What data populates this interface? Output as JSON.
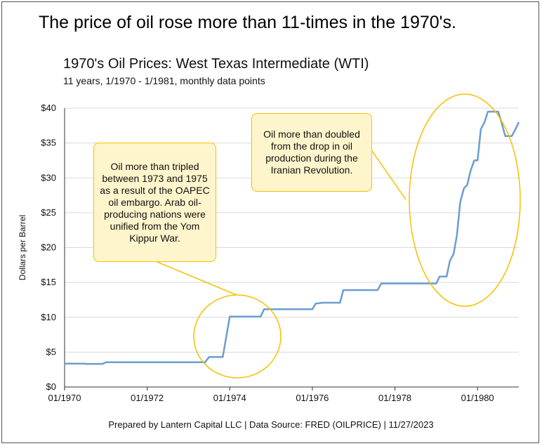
{
  "headline": "The price of oil rose more than 11-times in the 1970's.",
  "footer": "Prepared by Lantern Capital LLC | Data Source: FRED (OILPRICE) | 11/27/2023",
  "colors": {
    "line": "#6a9ecf",
    "annotation": "#f2c200",
    "callout_fill": "#fff5cc",
    "grid": "#d9d9d9"
  },
  "annotations": [
    {
      "text": "Oil more than tripled between 1973 and 1975 as a result of the OAPEC oil embargo. Arab oil-producing nations were unified from the Yom Kippur War."
    },
    {
      "text": "Oil more than doubled from the drop in oil production during the Iranian Revolution."
    }
  ],
  "chart_data": {
    "type": "line",
    "title": "1970's Oil Prices: West Texas Intermediate (WTI)",
    "subtitle": "11 years, 1/1970 - 1/1981, monthly data points",
    "ylabel": "Dollars per Barrel",
    "xlabel": "",
    "ylim": [
      0,
      40
    ],
    "xlim": [
      1970.0,
      1981.0
    ],
    "yticks": [
      "$0",
      "$5",
      "$10",
      "$15",
      "$20",
      "$25",
      "$30",
      "$35",
      "$40"
    ],
    "xticks": [
      "01/1970",
      "01/1972",
      "01/1974",
      "01/1976",
      "01/1978",
      "01/1980"
    ],
    "grid": "horizontal",
    "series": [
      {
        "name": "",
        "points": [
          [
            1970.0,
            3.35
          ],
          [
            1970.5,
            3.35
          ],
          [
            1970.5,
            3.31
          ],
          [
            1970.92,
            3.31
          ],
          [
            1971.0,
            3.56
          ],
          [
            1973.4,
            3.56
          ],
          [
            1973.5,
            4.31
          ],
          [
            1973.83,
            4.31
          ],
          [
            1974.0,
            10.11
          ],
          [
            1974.75,
            10.11
          ],
          [
            1974.83,
            11.16
          ],
          [
            1976.0,
            11.16
          ],
          [
            1976.08,
            11.96
          ],
          [
            1976.25,
            12.09
          ],
          [
            1976.67,
            12.09
          ],
          [
            1976.75,
            13.9
          ],
          [
            1977.58,
            13.9
          ],
          [
            1977.67,
            14.85
          ],
          [
            1979.0,
            14.85
          ],
          [
            1979.08,
            15.85
          ],
          [
            1979.25,
            15.85
          ],
          [
            1979.33,
            18.1
          ],
          [
            1979.42,
            19.1
          ],
          [
            1979.5,
            21.75
          ],
          [
            1979.58,
            26.5
          ],
          [
            1979.67,
            28.5
          ],
          [
            1979.75,
            29.0
          ],
          [
            1979.83,
            31.0
          ],
          [
            1979.92,
            32.5
          ],
          [
            1980.0,
            32.5
          ],
          [
            1980.08,
            37.0
          ],
          [
            1980.17,
            38.0
          ],
          [
            1980.25,
            39.5
          ],
          [
            1980.5,
            39.5
          ],
          [
            1980.58,
            38.0
          ],
          [
            1980.67,
            36.0
          ],
          [
            1980.83,
            36.0
          ],
          [
            1980.92,
            37.0
          ],
          [
            1981.0,
            38.0
          ]
        ]
      }
    ]
  }
}
